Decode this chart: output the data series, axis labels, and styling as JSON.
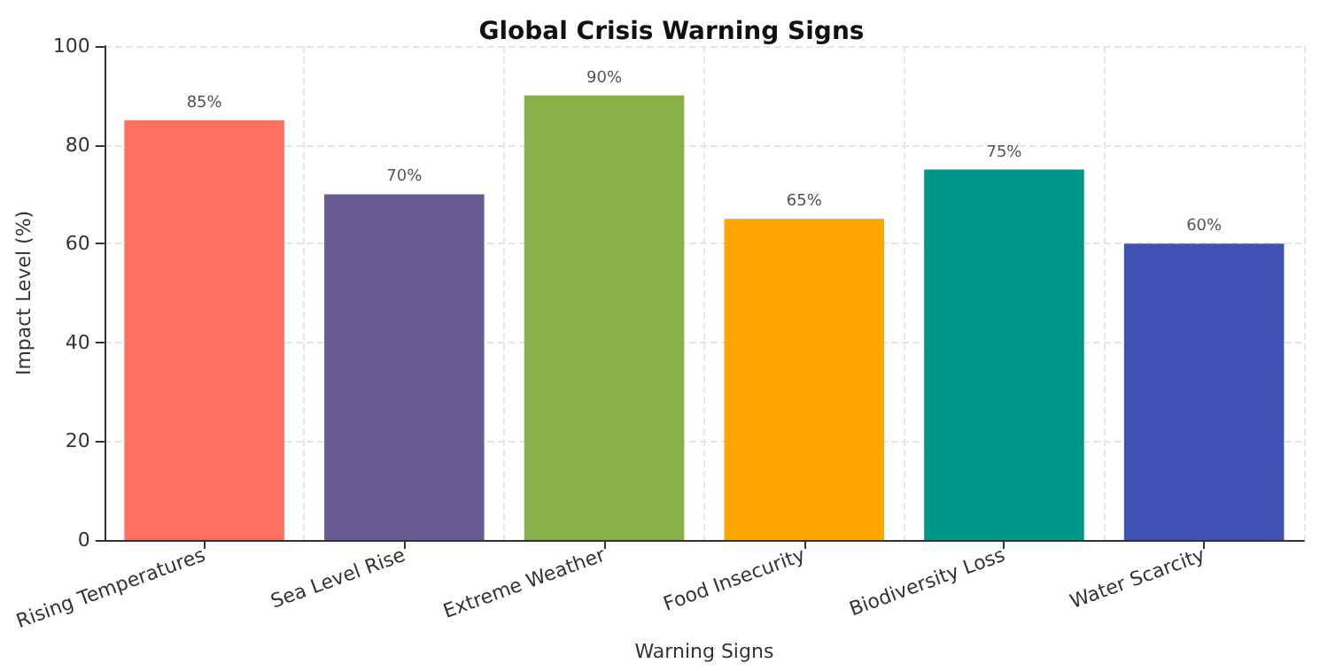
{
  "chart_data": {
    "type": "bar",
    "title": "Global Crisis Warning Signs",
    "xlabel": "Warning Signs",
    "ylabel": "Impact Level (%)",
    "categories": [
      "Rising Temperatures",
      "Sea Level Rise",
      "Extreme Weather",
      "Food Insecurity",
      "Biodiversity Loss",
      "Water Scarcity"
    ],
    "values": [
      85,
      70,
      90,
      65,
      75,
      60
    ],
    "colors": [
      "#ff6f61",
      "#6b5b95",
      "#88b04b",
      "#ffa500",
      "#009688",
      "#3f51b5"
    ],
    "value_labels": [
      "85%",
      "70%",
      "90%",
      "65%",
      "75%",
      "60%"
    ],
    "ylim": [
      0,
      100
    ],
    "yticks": [
      0,
      20,
      40,
      60,
      80,
      100
    ],
    "grid": true
  }
}
